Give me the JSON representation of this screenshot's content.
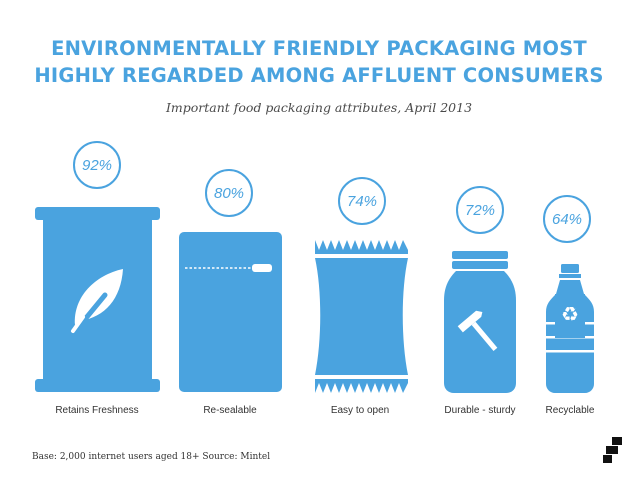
{
  "title_line1": "ENVIRONMENTALLY FRIENDLY PACKAGING MOST",
  "title_line2": "HIGHLY REGARDED AMONG AFFLUENT CONSUMERS",
  "subtitle": "Important food packaging attributes, April 2013",
  "footer": "Base: 2,000 internet users aged 18+ Source: Mintel",
  "colors": {
    "accent": "#4aa3df",
    "icon_fill": "#4aa3df"
  },
  "icons": [
    "can-with-leaf-icon",
    "zip-pouch-icon",
    "snack-bag-icon",
    "jar-with-hammer-icon",
    "bottle-with-recycle-icon",
    "brand-logo-icon"
  ],
  "chart_data": {
    "type": "bar",
    "categories": [
      "Retains Freshness",
      "Re-sealable",
      "Easy to open",
      "Durable - sturdy",
      "Recyclable"
    ],
    "values": [
      92,
      80,
      74,
      72,
      64
    ],
    "value_labels": [
      "92%",
      "80%",
      "74%",
      "72%",
      "64%"
    ],
    "title": "ENVIRONMENTALLY FRIENDLY PACKAGING MOST HIGHLY REGARDED AMONG AFFLUENT CONSUMERS",
    "subtitle": "Important food packaging attributes, April 2013",
    "unit": "%",
    "grid": false
  }
}
